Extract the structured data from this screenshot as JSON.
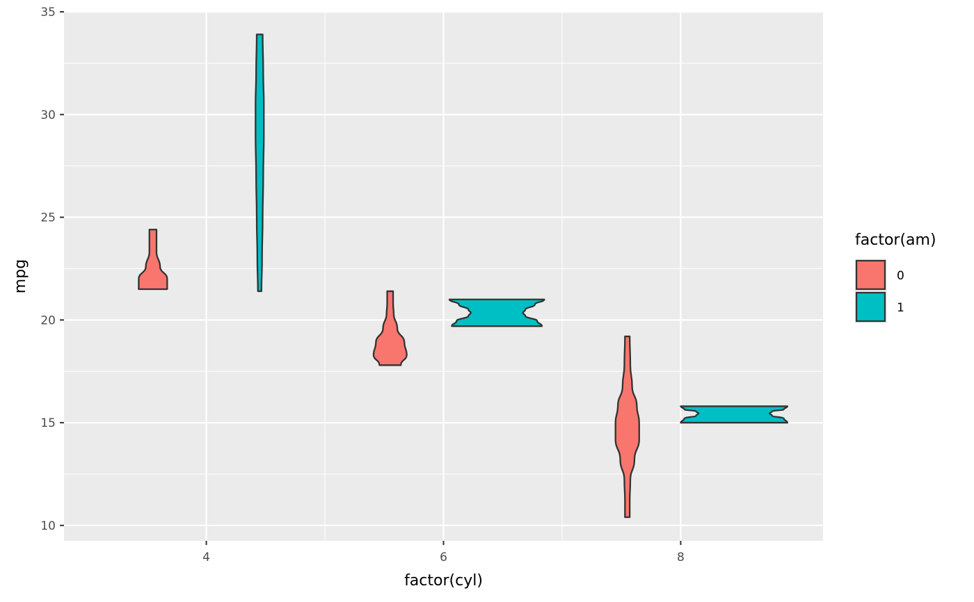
{
  "chart_data": {
    "type": "violin",
    "xlabel": "factor(cyl)",
    "ylabel": "mpg",
    "x_ticks": [
      4,
      6,
      8
    ],
    "y_ticks": [
      10,
      15,
      20,
      25,
      30,
      35
    ],
    "xlim": [
      2.8,
      9.2
    ],
    "ylim": [
      9.25,
      35.0
    ],
    "grid": true,
    "legend": {
      "title": "factor(am)",
      "position": "right",
      "entries": [
        {
          "label": "0",
          "color": "#F8766D"
        },
        {
          "label": "1",
          "color": "#00BFC4"
        }
      ]
    },
    "series": [
      {
        "name": "0",
        "color": "#F8766D",
        "violins": [
          {
            "x": 4,
            "center": 3.55,
            "min": 21.5,
            "max": 24.4,
            "profile": [
              [
                21.5,
                0.12
              ],
              [
                22.0,
                0.12
              ],
              [
                22.6,
                0.06
              ],
              [
                23.3,
                0.03
              ],
              [
                23.8,
                0.03
              ],
              [
                24.4,
                0.03
              ]
            ]
          },
          {
            "x": 6,
            "center": 5.55,
            "min": 17.8,
            "max": 21.4,
            "profile": [
              [
                17.8,
                0.09
              ],
              [
                18.3,
                0.14
              ],
              [
                18.9,
                0.12
              ],
              [
                19.6,
                0.06
              ],
              [
                20.3,
                0.03
              ],
              [
                20.8,
                0.025
              ],
              [
                21.4,
                0.025
              ]
            ]
          },
          {
            "x": 8,
            "center": 7.55,
            "min": 10.4,
            "max": 19.2,
            "profile": [
              [
                10.4,
                0.02
              ],
              [
                11.2,
                0.02
              ],
              [
                12.2,
                0.025
              ],
              [
                13.2,
                0.06
              ],
              [
                14.2,
                0.1
              ],
              [
                15.0,
                0.1
              ],
              [
                15.8,
                0.08
              ],
              [
                16.8,
                0.04
              ],
              [
                17.8,
                0.025
              ],
              [
                19.2,
                0.02
              ]
            ]
          }
        ]
      },
      {
        "name": "1",
        "color": "#00BFC4",
        "violins": [
          {
            "x": 4,
            "center": 4.45,
            "min": 21.4,
            "max": 33.9,
            "profile": [
              [
                21.4,
                0.015
              ],
              [
                23.0,
                0.02
              ],
              [
                25.0,
                0.025
              ],
              [
                27.0,
                0.03
              ],
              [
                29.0,
                0.035
              ],
              [
                30.5,
                0.035
              ],
              [
                32.0,
                0.03
              ],
              [
                33.9,
                0.025
              ]
            ]
          },
          {
            "x": 6,
            "center": 6.45,
            "min": 19.7,
            "max": 21.0,
            "profile": [
              [
                19.7,
                0.38
              ],
              [
                19.95,
                0.34
              ],
              [
                20.2,
                0.24
              ],
              [
                20.35,
                0.22
              ],
              [
                20.5,
                0.24
              ],
              [
                20.75,
                0.32
              ],
              [
                21.0,
                0.4
              ]
            ]
          },
          {
            "x": 8,
            "center": 8.45,
            "min": 15.0,
            "max": 15.8,
            "profile": [
              [
                15.0,
                0.45
              ],
              [
                15.2,
                0.42
              ],
              [
                15.35,
                0.32
              ],
              [
                15.45,
                0.3
              ],
              [
                15.55,
                0.32
              ],
              [
                15.65,
                0.42
              ],
              [
                15.8,
                0.45
              ]
            ]
          }
        ]
      }
    ]
  }
}
